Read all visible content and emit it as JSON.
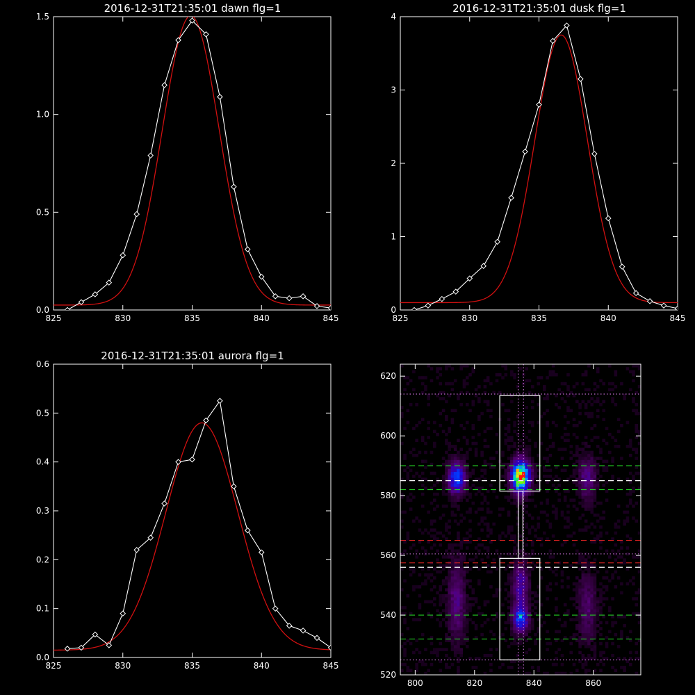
{
  "colors": {
    "background": "#000000",
    "axes": "#ffffff",
    "data_line": "#ffffff",
    "fit_line": "#d01010",
    "band_line": "#22cc22",
    "center_line": "#ffffff",
    "red_line": "#d02020",
    "dotted": "#c06ad0",
    "box": "#ffffff"
  },
  "chart_data": [
    {
      "type": "line",
      "title": "2016-12-31T21:35:01 dawn flg=1",
      "xlim": [
        825,
        845
      ],
      "ylim": [
        0,
        1.5
      ],
      "xticks": [
        "825",
        "830",
        "835",
        "840",
        "845"
      ],
      "yticks": [
        "0.0",
        "0.5",
        "1.0",
        "1.5"
      ],
      "series": [
        {
          "role": "data",
          "x": [
            826,
            827,
            828,
            829,
            830,
            831,
            832,
            833,
            834,
            835,
            836,
            837,
            838,
            839,
            840,
            841,
            842,
            843,
            844,
            845
          ],
          "y": [
            0.0,
            0.04,
            0.08,
            0.14,
            0.28,
            0.49,
            0.79,
            1.15,
            1.38,
            1.48,
            1.41,
            1.09,
            0.63,
            0.31,
            0.17,
            0.07,
            0.06,
            0.07,
            0.02,
            0.01
          ]
        },
        {
          "role": "fit",
          "gaussian": {
            "amplitude": 1.48,
            "center": 834.9,
            "sigma": 2.05,
            "offset": 0.025
          }
        }
      ]
    },
    {
      "type": "line",
      "title": "2016-12-31T21:35:01 dusk flg=1",
      "xlim": [
        825,
        845
      ],
      "ylim": [
        0,
        4
      ],
      "xticks": [
        "825",
        "830",
        "835",
        "840",
        "845"
      ],
      "yticks": [
        "0",
        "1",
        "2",
        "3",
        "4"
      ],
      "series": [
        {
          "role": "data",
          "x": [
            826,
            827,
            828,
            829,
            830,
            831,
            832,
            833,
            834,
            835,
            836,
            837,
            838,
            839,
            840,
            841,
            842,
            843,
            844,
            845
          ],
          "y": [
            0.0,
            0.06,
            0.15,
            0.25,
            0.43,
            0.6,
            0.93,
            1.53,
            2.16,
            2.8,
            3.67,
            3.88,
            3.15,
            2.13,
            1.25,
            0.59,
            0.23,
            0.12,
            0.06,
            0.02
          ]
        },
        {
          "role": "fit",
          "gaussian": {
            "amplitude": 3.65,
            "center": 836.6,
            "sigma": 1.9,
            "offset": 0.1
          }
        }
      ]
    },
    {
      "type": "line",
      "title": "2016-12-31T21:35:01 aurora flg=1",
      "xlim": [
        825,
        845
      ],
      "ylim": [
        0,
        0.6
      ],
      "xticks": [
        "825",
        "830",
        "835",
        "840",
        "845"
      ],
      "yticks": [
        "0.0",
        "0.1",
        "0.2",
        "0.3",
        "0.4",
        "0.5",
        "0.6"
      ],
      "series": [
        {
          "role": "data",
          "x": [
            826,
            827,
            828,
            829,
            830,
            831,
            832,
            833,
            834,
            835,
            836,
            837,
            838,
            839,
            840,
            841,
            842,
            843,
            844,
            845
          ],
          "y": [
            0.018,
            0.02,
            0.047,
            0.025,
            0.09,
            0.22,
            0.245,
            0.315,
            0.4,
            0.405,
            0.485,
            0.525,
            0.35,
            0.26,
            0.215,
            0.1,
            0.065,
            0.055,
            0.04,
            0.02
          ]
        },
        {
          "role": "fit",
          "gaussian": {
            "amplitude": 0.465,
            "center": 835.7,
            "sigma": 2.6,
            "offset": 0.015
          }
        }
      ]
    },
    {
      "type": "heatmap",
      "xlim": [
        795,
        876
      ],
      "ylim": [
        520,
        624
      ],
      "xticks": [
        "800",
        "820",
        "840",
        "860"
      ],
      "yticks": [
        "520",
        "540",
        "560",
        "580",
        "600",
        "620"
      ],
      "blobs": [
        {
          "x": 835.5,
          "y": 586.5,
          "sx": 2.0,
          "sy": 3.5,
          "amp": 1.0
        },
        {
          "x": 814,
          "y": 586,
          "sx": 1.8,
          "sy": 3.5,
          "amp": 0.55
        },
        {
          "x": 835.5,
          "y": 539,
          "sx": 1.7,
          "sy": 3.0,
          "amp": 0.5
        },
        {
          "x": 835.5,
          "y": 550,
          "sx": 1.8,
          "sy": 5.0,
          "amp": 0.28
        },
        {
          "x": 858,
          "y": 586,
          "sx": 2.0,
          "sy": 5.0,
          "amp": 0.22
        },
        {
          "x": 858,
          "y": 543,
          "sx": 2.0,
          "sy": 8.0,
          "amp": 0.16
        },
        {
          "x": 814,
          "y": 545,
          "sx": 2.0,
          "sy": 9.0,
          "amp": 0.2
        }
      ],
      "boxes": [
        {
          "x0": 828.5,
          "x1": 842,
          "y0": 581.5,
          "y1": 613.5
        },
        {
          "x0": 828.5,
          "x1": 842,
          "y0": 525,
          "y1": 559
        },
        {
          "x0": 834.7,
          "x1": 836.3,
          "y0": 559,
          "y1": 581.5
        }
      ],
      "green_dashed_y": [
        590,
        582,
        540,
        532
      ],
      "white_dashed_y": [
        585,
        556
      ],
      "red_dashed_y": [
        565,
        557.5
      ],
      "dotted_y": [
        614,
        560.5,
        525
      ],
      "dotted_x": [
        834.7,
        836.5
      ]
    }
  ]
}
